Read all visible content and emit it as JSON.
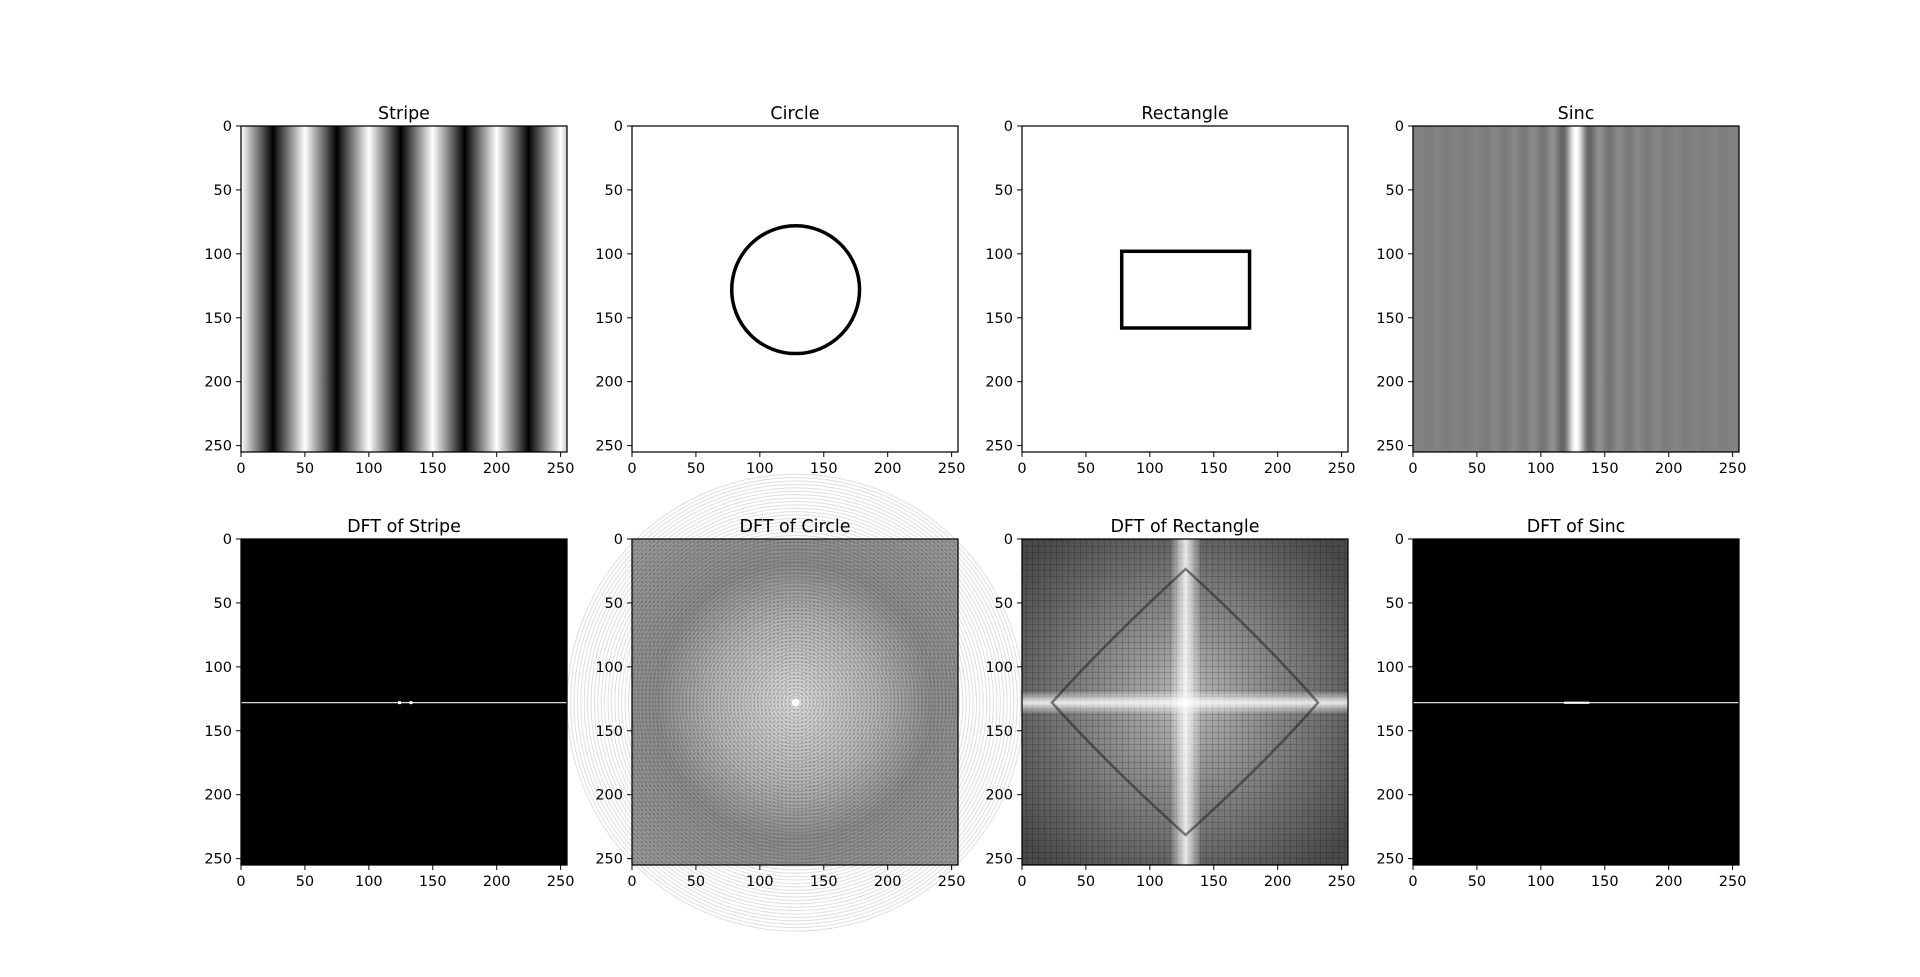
{
  "figure": {
    "rows": 2,
    "cols": 4,
    "colormap": "gray",
    "background": "#ffffff"
  },
  "chart_data": [
    {
      "type": "heatmap",
      "title": "Stripe",
      "image": "stripe",
      "stripe_period": 50,
      "xlim": [
        0,
        255
      ],
      "ylim": [
        255,
        0
      ],
      "xticks": [
        0,
        50,
        100,
        150,
        200,
        250
      ],
      "yticks": [
        0,
        50,
        100,
        150,
        200,
        250
      ],
      "xlabel": "",
      "ylabel": ""
    },
    {
      "type": "heatmap",
      "title": "Circle",
      "image": "circle",
      "center": [
        128,
        128
      ],
      "radius": 50,
      "xlim": [
        0,
        255
      ],
      "ylim": [
        255,
        0
      ],
      "xticks": [
        0,
        50,
        100,
        150,
        200,
        250
      ],
      "yticks": [
        0,
        50,
        100,
        150,
        200,
        250
      ],
      "xlabel": "",
      "ylabel": ""
    },
    {
      "type": "heatmap",
      "title": "Rectangle",
      "image": "rectangle",
      "rect_x": [
        78,
        178
      ],
      "rect_y": [
        98,
        158
      ],
      "xlim": [
        0,
        255
      ],
      "ylim": [
        255,
        0
      ],
      "xticks": [
        0,
        50,
        100,
        150,
        200,
        250
      ],
      "yticks": [
        0,
        50,
        100,
        150,
        200,
        250
      ],
      "xlabel": "",
      "ylabel": ""
    },
    {
      "type": "heatmap",
      "title": "Sinc",
      "image": "sinc",
      "center_x": 128,
      "xlim": [
        0,
        255
      ],
      "ylim": [
        255,
        0
      ],
      "xticks": [
        0,
        50,
        100,
        150,
        200,
        250
      ],
      "yticks": [
        0,
        50,
        100,
        150,
        200,
        250
      ],
      "xlabel": "",
      "ylabel": ""
    },
    {
      "type": "heatmap",
      "title": "DFT of Stripe",
      "image": "dft_stripe",
      "line_y": 128,
      "xlim": [
        0,
        255
      ],
      "ylim": [
        255,
        0
      ],
      "xticks": [
        0,
        50,
        100,
        150,
        200,
        250
      ],
      "yticks": [
        0,
        50,
        100,
        150,
        200,
        250
      ],
      "xlabel": "",
      "ylabel": ""
    },
    {
      "type": "heatmap",
      "title": "DFT of Circle",
      "image": "dft_circle",
      "center": [
        128,
        128
      ],
      "xlim": [
        0,
        255
      ],
      "ylim": [
        255,
        0
      ],
      "xticks": [
        0,
        50,
        100,
        150,
        200,
        250
      ],
      "yticks": [
        0,
        50,
        100,
        150,
        200,
        250
      ],
      "xlabel": "",
      "ylabel": ""
    },
    {
      "type": "heatmap",
      "title": "DFT of Rectangle",
      "image": "dft_rectangle",
      "center": [
        128,
        128
      ],
      "xlim": [
        0,
        255
      ],
      "ylim": [
        255,
        0
      ],
      "xticks": [
        0,
        50,
        100,
        150,
        200,
        250
      ],
      "yticks": [
        0,
        50,
        100,
        150,
        200,
        250
      ],
      "xlabel": "",
      "ylabel": ""
    },
    {
      "type": "heatmap",
      "title": "DFT of Sinc",
      "image": "dft_sinc",
      "line_y": 128,
      "xlim": [
        0,
        255
      ],
      "ylim": [
        255,
        0
      ],
      "xticks": [
        0,
        50,
        100,
        150,
        200,
        250
      ],
      "yticks": [
        0,
        50,
        100,
        150,
        200,
        250
      ],
      "xlabel": "",
      "ylabel": ""
    }
  ]
}
